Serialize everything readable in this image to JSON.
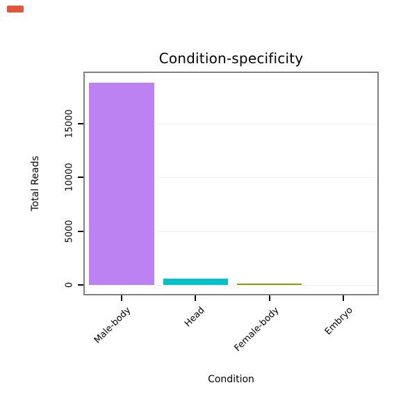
{
  "chart_data": {
    "type": "bar",
    "title": "Condition-specificity",
    "xlabel": "Condition",
    "ylabel": "Total Reads",
    "categories": [
      "Male-body",
      "Head",
      "Female-body",
      "Embryo"
    ],
    "values": [
      18800,
      550,
      150,
      0
    ],
    "bar_colors": [
      "#bc82f2",
      "#00c0c8",
      "#949400",
      "#f8766d"
    ],
    "yticks": [
      0,
      5000,
      10000,
      15000
    ],
    "ylim": [
      0,
      19800
    ],
    "grid": true,
    "legend": "none",
    "gridline_color": "#f0f0f0",
    "panel_border_color": "#7f7f7f",
    "background": "#ffffff",
    "tick_color": "#000000"
  },
  "decorations": {
    "top_left_badge_color": "#e2543c"
  }
}
